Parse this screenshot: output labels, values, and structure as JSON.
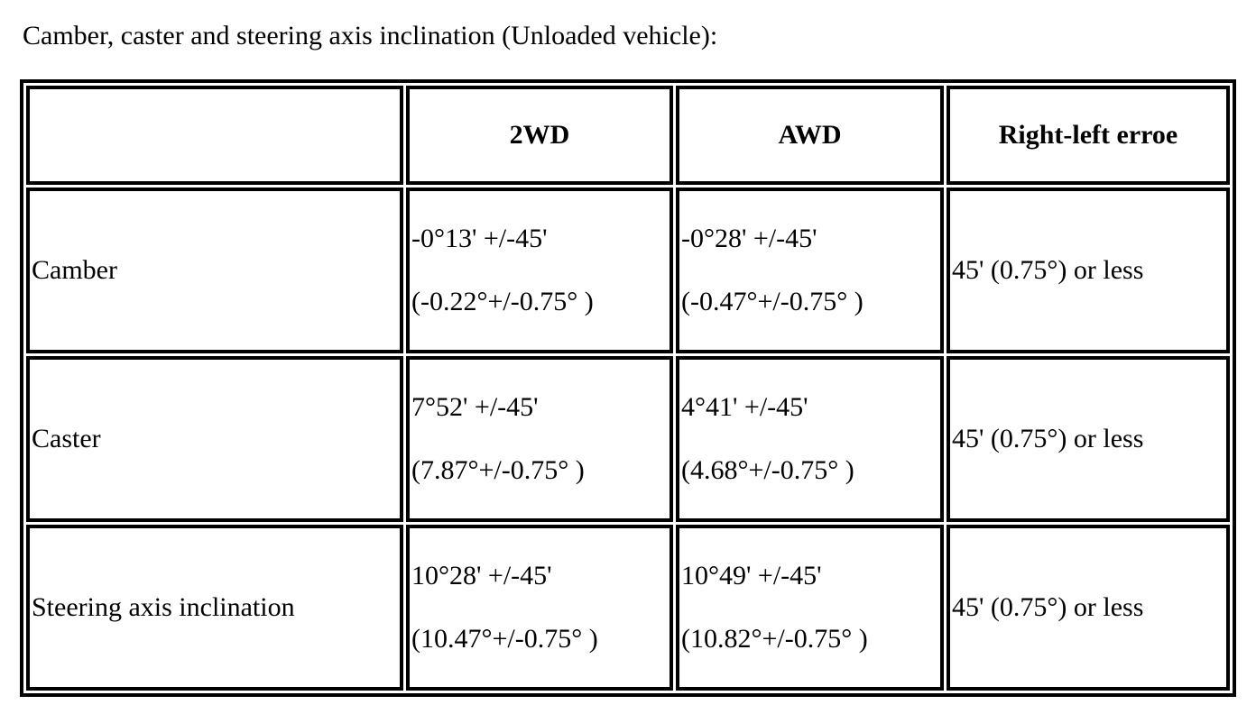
{
  "title": "Camber, caster and steering axis inclination (Unloaded vehicle):",
  "colors": {
    "text": "#000000",
    "border": "#000000",
    "background": "#ffffff"
  },
  "table": {
    "headers": [
      "",
      "2WD",
      "AWD",
      "Right-left erroe"
    ],
    "rows": [
      {
        "label": "Camber",
        "values_2wd": [
          "-0°13' +/-45'",
          "(-0.22°+/-0.75° )"
        ],
        "values_awd": [
          "-0°28' +/-45'",
          "(-0.47°+/-0.75° )"
        ],
        "right_left_error": "45' (0.75°) or less"
      },
      {
        "label": "Caster",
        "values_2wd": [
          "7°52' +/-45'",
          "(7.87°+/-0.75° )"
        ],
        "values_awd": [
          "4°41' +/-45'",
          "(4.68°+/-0.75° )"
        ],
        "right_left_error": "45' (0.75°) or less"
      },
      {
        "label": "Steering axis inclination",
        "values_2wd": [
          "10°28' +/-45'",
          "(10.47°+/-0.75° )"
        ],
        "values_awd": [
          "10°49' +/-45'",
          "(10.82°+/-0.75° )"
        ],
        "right_left_error": "45' (0.75°) or less"
      }
    ]
  }
}
